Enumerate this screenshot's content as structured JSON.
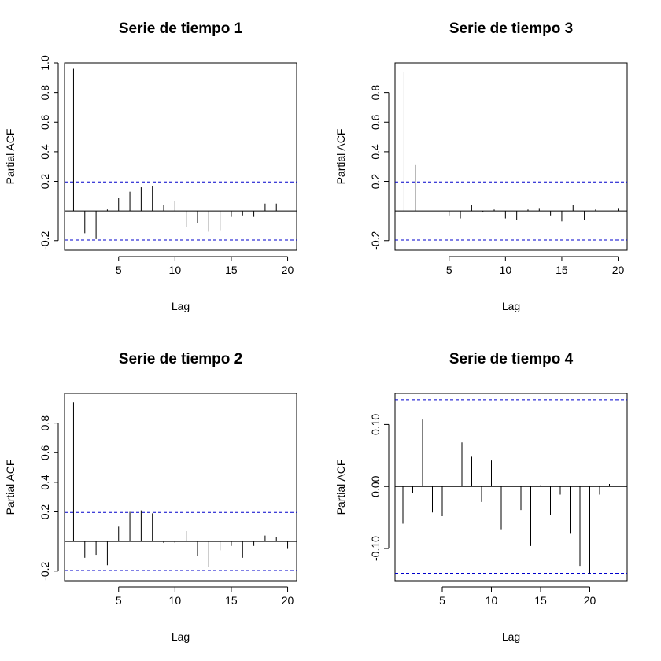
{
  "chart_data": [
    {
      "type": "bar",
      "title": "Serie de tiempo 1",
      "xlabel": "Lag",
      "ylabel": "Partial ACF",
      "xlim": [
        0.2,
        20.8
      ],
      "ylim": [
        -0.265,
        1.0
      ],
      "xticks": [
        5,
        10,
        15,
        20
      ],
      "yticks": [
        -0.2,
        0.2,
        0.4,
        0.6,
        0.8,
        1.0
      ],
      "ytick_labels": [
        "-0.2",
        "0.2",
        "0.4",
        "0.6",
        "0.8",
        "1.0"
      ],
      "confidence_bound": 0.196,
      "lags": [
        1,
        2,
        3,
        4,
        5,
        6,
        7,
        8,
        9,
        10,
        11,
        12,
        13,
        14,
        15,
        16,
        17,
        18,
        19
      ],
      "values": [
        0.96,
        -0.15,
        -0.19,
        0.01,
        0.09,
        0.13,
        0.16,
        0.17,
        0.04,
        0.07,
        -0.11,
        -0.08,
        -0.14,
        -0.13,
        -0.04,
        -0.03,
        -0.04,
        0.05,
        0.05
      ]
    },
    {
      "type": "bar",
      "title": "Serie de tiempo 3",
      "xlabel": "Lag",
      "ylabel": "Partial ACF",
      "xlim": [
        0.2,
        20.8
      ],
      "ylim": [
        -0.265,
        1.0
      ],
      "xticks": [
        5,
        10,
        15,
        20
      ],
      "yticks": [
        -0.2,
        0.2,
        0.4,
        0.6,
        0.8
      ],
      "ytick_labels": [
        "-0.2",
        "0.2",
        "0.4",
        "0.6",
        "0.8"
      ],
      "confidence_bound": 0.196,
      "lags": [
        1,
        2,
        3,
        4,
        5,
        6,
        7,
        8,
        9,
        10,
        11,
        12,
        13,
        14,
        15,
        16,
        17,
        18,
        19,
        20
      ],
      "values": [
        0.94,
        0.31,
        0.0,
        0.0,
        -0.03,
        -0.05,
        0.04,
        -0.01,
        0.01,
        -0.05,
        -0.06,
        0.01,
        0.02,
        -0.03,
        -0.07,
        0.04,
        -0.06,
        0.01,
        0.0,
        0.02
      ]
    },
    {
      "type": "bar",
      "title": "Serie de tiempo 2",
      "xlabel": "Lag",
      "ylabel": "Partial ACF",
      "xlim": [
        0.2,
        20.8
      ],
      "ylim": [
        -0.265,
        1.0
      ],
      "xticks": [
        5,
        10,
        15,
        20
      ],
      "yticks": [
        -0.2,
        0.2,
        0.4,
        0.6,
        0.8
      ],
      "ytick_labels": [
        "-0.2",
        "0.2",
        "0.4",
        "0.6",
        "0.8"
      ],
      "confidence_bound": 0.196,
      "lags": [
        1,
        2,
        3,
        4,
        5,
        6,
        7,
        8,
        9,
        10,
        11,
        12,
        13,
        14,
        15,
        16,
        17,
        18,
        19,
        20
      ],
      "values": [
        0.94,
        -0.11,
        -0.09,
        -0.16,
        0.1,
        0.2,
        0.21,
        0.19,
        -0.01,
        -0.01,
        0.07,
        -0.1,
        -0.17,
        -0.06,
        -0.03,
        -0.11,
        -0.03,
        0.04,
        0.03,
        -0.05
      ]
    },
    {
      "type": "bar",
      "title": "Serie de tiempo 4",
      "xlabel": "Lag",
      "ylabel": "Partial ACF",
      "xlim": [
        0.2,
        23.8
      ],
      "ylim": [
        -0.152,
        0.15
      ],
      "xticks": [
        5,
        10,
        15,
        20
      ],
      "yticks": [
        -0.1,
        0.0,
        0.1
      ],
      "ytick_labels": [
        "-0.10",
        "0.00",
        "0.10"
      ],
      "confidence_bound": 0.14,
      "lags": [
        1,
        2,
        3,
        4,
        5,
        6,
        7,
        8,
        9,
        10,
        11,
        12,
        13,
        14,
        15,
        16,
        17,
        18,
        19,
        20,
        21,
        22
      ],
      "values": [
        -0.06,
        -0.01,
        0.108,
        -0.042,
        -0.048,
        -0.067,
        0.071,
        0.048,
        -0.025,
        0.042,
        -0.069,
        -0.033,
        -0.038,
        -0.096,
        0.002,
        -0.046,
        -0.013,
        -0.075,
        -0.128,
        -0.14,
        -0.013,
        0.004
      ]
    }
  ],
  "colors": {
    "bound": "#0000cc",
    "axis": "#000000",
    "spike": "#000000"
  }
}
